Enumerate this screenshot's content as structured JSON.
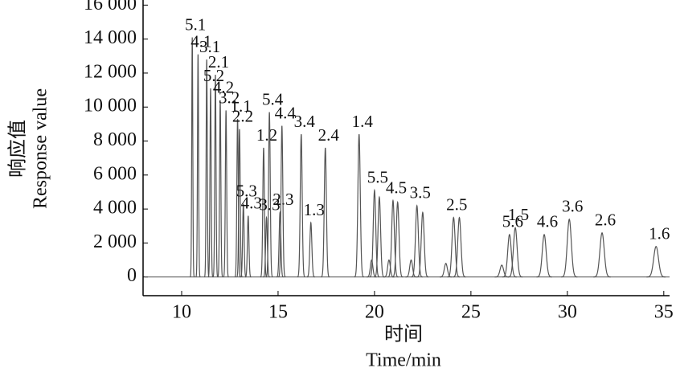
{
  "chart_data": {
    "type": "chromatogram",
    "x_label": "时间",
    "x_label_en": "Time/min",
    "y_label": "响应值",
    "y_label_en": "Response value",
    "xlim": [
      8,
      35.3
    ],
    "xticks": [
      10,
      15,
      20,
      25,
      30,
      35
    ],
    "ylim": [
      -1100,
      16300
    ],
    "yticks": [
      {
        "value": 0,
        "label": "0"
      },
      {
        "value": 2000,
        "label": "2 000"
      },
      {
        "value": 4000,
        "label": "4 000"
      },
      {
        "value": 6000,
        "label": "6 000"
      },
      {
        "value": 8000,
        "label": "8 000"
      },
      {
        "value": 10000,
        "label": "10 000"
      },
      {
        "value": 12000,
        "label": "12 000"
      },
      {
        "value": 14000,
        "label": "14 000"
      },
      {
        "value": 16000,
        "label": "16 000"
      }
    ],
    "color": "#555555",
    "peaks": {
      "labels": [
        "5.1",
        "4.1",
        "3.1",
        "5.2",
        "2.1",
        "4.2",
        "3.2",
        "1.1",
        "2.2",
        "5.3",
        "4.3",
        "1.2",
        "3.3",
        "5.4",
        "2.3",
        "4.4",
        "3.4",
        "1.3",
        "2.4",
        "1.4",
        null,
        "5.5",
        null,
        null,
        "4.5",
        null,
        null,
        "3.5",
        null,
        null,
        "2.5",
        null,
        null,
        "5.6",
        "1.5",
        "4.6",
        "3.6",
        "2.6",
        "1.6"
      ],
      "x": [
        10.55,
        10.85,
        11.3,
        11.5,
        11.75,
        12.0,
        12.3,
        12.9,
        13.0,
        13.2,
        13.45,
        14.25,
        14.4,
        14.55,
        15.1,
        15.2,
        16.2,
        16.7,
        17.45,
        19.2,
        19.85,
        20.0,
        20.25,
        20.75,
        20.96,
        21.2,
        21.9,
        22.2,
        22.5,
        23.7,
        24.1,
        24.4,
        26.6,
        27.0,
        27.3,
        28.8,
        30.1,
        31.8,
        34.6
      ],
      "values": [
        14100,
        13100,
        12800,
        11100,
        11900,
        10400,
        9800,
        9300,
        8700,
        4300,
        3600,
        7600,
        3500,
        9700,
        3800,
        8900,
        8400,
        3200,
        7600,
        8400,
        1000,
        5100,
        4700,
        1000,
        4500,
        4400,
        1000,
        4200,
        3800,
        800,
        3500,
        3500,
        700,
        2500,
        2900,
        2500,
        3400,
        2600,
        1800
      ]
    }
  }
}
